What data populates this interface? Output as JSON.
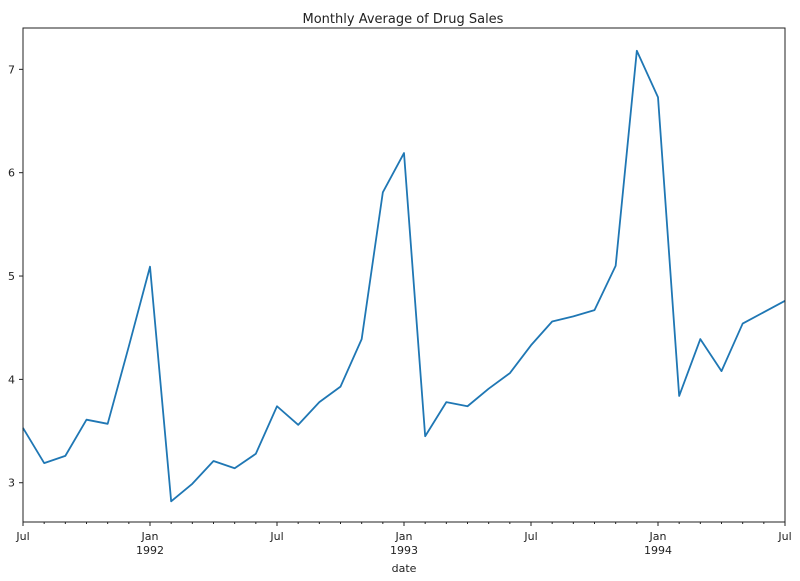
{
  "chart_data": {
    "type": "line",
    "title": "Monthly Average of Drug Sales",
    "xlabel": "date",
    "ylabel": "",
    "ylim": [
      2.62,
      7.4
    ],
    "xlim": [
      "1991-07",
      "1994-07"
    ],
    "grid": false,
    "legend": "none",
    "series": [
      {
        "color": "#1f77b4",
        "x": [
          "1991-07",
          "1991-08",
          "1991-09",
          "1991-10",
          "1991-11",
          "1991-12",
          "1992-01",
          "1992-02",
          "1992-03",
          "1992-04",
          "1992-05",
          "1992-06",
          "1992-07",
          "1992-08",
          "1992-09",
          "1992-10",
          "1992-11",
          "1992-12",
          "1993-01",
          "1993-02",
          "1993-03",
          "1993-04",
          "1993-05",
          "1993-06",
          "1993-07",
          "1993-08",
          "1993-09",
          "1993-10",
          "1993-11",
          "1993-12",
          "1994-01",
          "1994-02",
          "1994-03",
          "1994-04",
          "1994-05",
          "1994-06",
          "1994-07"
        ],
        "values": [
          3.53,
          3.19,
          3.26,
          3.61,
          3.57,
          4.32,
          5.09,
          2.82,
          2.99,
          3.21,
          3.14,
          3.28,
          3.74,
          3.56,
          3.78,
          3.93,
          4.39,
          5.81,
          6.19,
          3.45,
          3.78,
          3.74,
          3.91,
          4.06,
          4.33,
          4.56,
          4.61,
          4.67,
          5.1,
          7.18,
          6.73,
          3.84,
          4.39,
          4.08,
          4.54,
          4.65,
          4.76
        ]
      }
    ],
    "yticks": [
      "3",
      "4",
      "5",
      "6",
      "7"
    ],
    "yticks_values": [
      3,
      4,
      5,
      6,
      7
    ],
    "xticks_major": [
      {
        "date": "1991-07",
        "label": "Jul"
      },
      {
        "date": "1992-01",
        "label": "Jan",
        "sublabel": "1992"
      },
      {
        "date": "1992-07",
        "label": "Jul"
      },
      {
        "date": "1993-01",
        "label": "Jan",
        "sublabel": "1993"
      },
      {
        "date": "1993-07",
        "label": "Jul"
      },
      {
        "date": "1994-01",
        "label": "Jan",
        "sublabel": "1994"
      },
      {
        "date": "1994-07",
        "label": "Jul"
      }
    ]
  }
}
